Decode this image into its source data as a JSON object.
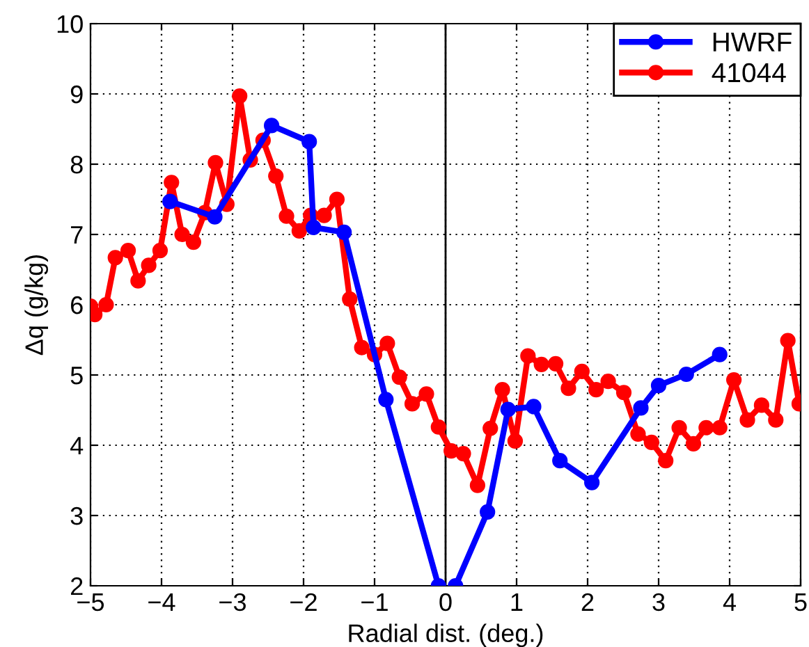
{
  "chart_data": {
    "type": "line",
    "xlabel": "Radial dist. (deg.)",
    "ylabel": "Δq (g/kg)",
    "xlim": [
      -5,
      5
    ],
    "ylim": [
      2,
      10
    ],
    "xticks": [
      {
        "value": -5,
        "label": "−5"
      },
      {
        "value": -4,
        "label": "−4"
      },
      {
        "value": -3,
        "label": "−3"
      },
      {
        "value": -2,
        "label": "−2"
      },
      {
        "value": -1,
        "label": "−1"
      },
      0,
      1,
      2,
      3,
      4,
      5
    ],
    "yticks": [
      2,
      3,
      4,
      5,
      6,
      7,
      8,
      9,
      10
    ],
    "grid": true,
    "legend": "top right",
    "marker": "circle",
    "line_style": "solid",
    "ref_lines": [
      {
        "axis": "x",
        "value": 0,
        "color": "#000000",
        "line_style": "solid"
      }
    ],
    "series": [
      {
        "name": "HWRF",
        "color": "#0000ff",
        "x": [
          -3.88,
          -3.25,
          -2.45,
          -1.92,
          -1.86,
          -1.43,
          -0.84,
          -0.1,
          0.02,
          0.14,
          0.59,
          0.88,
          1.24,
          1.61,
          2.06,
          2.75,
          3.0,
          3.39,
          3.86
        ],
        "values": [
          7.47,
          7.25,
          8.55,
          8.32,
          7.1,
          7.03,
          4.65,
          2.0,
          null,
          2.0,
          3.05,
          4.51,
          4.55,
          3.78,
          3.47,
          4.53,
          4.85,
          5.01,
          5.29
        ]
      },
      {
        "name": "41044",
        "color": "#ff0000",
        "x": [
          -5,
          -4.94,
          -4.78,
          -4.65,
          -4.47,
          -4.33,
          -4.18,
          -4.02,
          -3.86,
          -3.71,
          -3.55,
          -3.39,
          -3.24,
          -3.08,
          -2.9,
          -2.75,
          -2.57,
          -2.39,
          -2.24,
          -2.06,
          -1.9,
          -1.71,
          -1.53,
          -1.35,
          -1.18,
          -1.0,
          -0.82,
          -0.65,
          -0.47,
          -0.27,
          -0.1,
          0.08,
          0.25,
          0.45,
          0.63,
          0.8,
          0.98,
          1.16,
          1.35,
          1.55,
          1.73,
          1.92,
          2.12,
          2.29,
          2.51,
          2.71,
          2.9,
          3.1,
          3.29,
          3.49,
          3.67,
          3.86,
          4.06,
          4.25,
          4.45,
          4.65,
          4.82,
          4.98
        ],
        "values": [
          5.98,
          5.86,
          6.0,
          6.67,
          6.77,
          6.34,
          6.56,
          6.77,
          7.74,
          7.0,
          6.89,
          7.31,
          8.02,
          7.43,
          8.97,
          8.06,
          8.34,
          7.83,
          7.26,
          7.05,
          7.27,
          7.27,
          7.5,
          6.08,
          5.39,
          5.29,
          5.45,
          4.97,
          4.59,
          4.73,
          4.26,
          3.92,
          3.88,
          3.43,
          4.24,
          4.79,
          4.06,
          5.27,
          5.15,
          5.16,
          4.81,
          5.05,
          4.79,
          4.91,
          4.75,
          4.16,
          4.04,
          3.78,
          4.25,
          4.02,
          4.25,
          4.25,
          4.93,
          4.36,
          4.57,
          4.36,
          5.49,
          4.59
        ]
      }
    ]
  }
}
